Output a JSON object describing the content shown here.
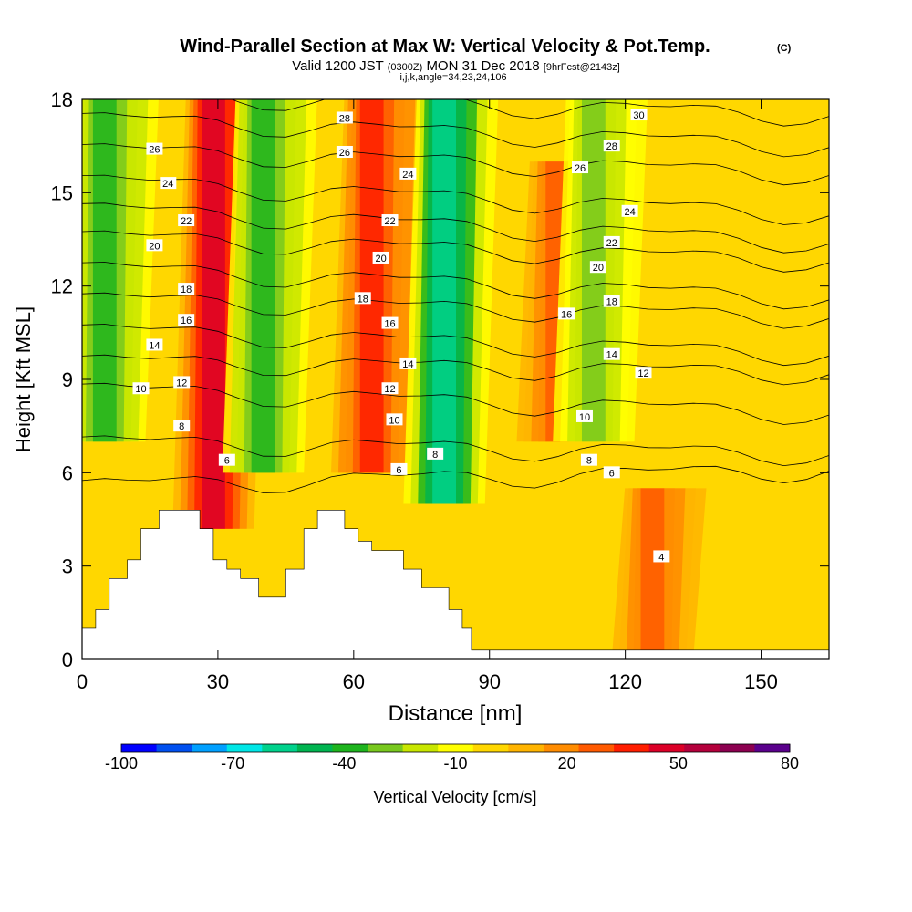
{
  "chart_data": {
    "type": "heatmap",
    "title": "Wind-Parallel Section at Max W: Vertical Velocity & Pot.Temp.",
    "title_suffix": "(C)",
    "subtitle": {
      "valid": "Valid 1200 JST",
      "utc": "(0300Z)",
      "date": "MON 31 Dec 2018",
      "forecast": "[9hrFcst@2143z]"
    },
    "indices": "i,j,k,angle=34,23,24,106",
    "xlabel": "Distance [nm]",
    "ylabel": "Height [Kft MSL]",
    "xlim": [
      0,
      165
    ],
    "ylim": [
      0,
      18
    ],
    "x_ticks": [
      0,
      30,
      60,
      90,
      120,
      150
    ],
    "y_ticks": [
      0,
      3,
      6,
      9,
      12,
      15,
      18
    ],
    "colorbar": {
      "label": "Vertical Velocity [cm/s]",
      "range": [
        -100,
        80
      ],
      "tick_labels": [
        "-100",
        "-70",
        "-40",
        "-10",
        "20",
        "50",
        "80"
      ],
      "colors": [
        "#0000ff",
        "#0050f0",
        "#00a0ff",
        "#00e6e6",
        "#00d28c",
        "#00b450",
        "#1eb41e",
        "#78c81e",
        "#c8e600",
        "#ffff00",
        "#ffd700",
        "#ffb400",
        "#ff8c00",
        "#ff5a00",
        "#ff1e00",
        "#dc0028",
        "#b4003c",
        "#8c0050",
        "#5a008c"
      ]
    },
    "updrafts": [
      {
        "x": 29,
        "z0": 4.2,
        "z1": 18,
        "peak_cm_s": 50
      },
      {
        "x": 64,
        "z0": 6,
        "z1": 18,
        "peak_cm_s": 35
      },
      {
        "x": 105,
        "z0": 7,
        "z1": 16,
        "peak_cm_s": 25
      },
      {
        "x": 126,
        "z0": 0,
        "z1": 5.5,
        "peak_cm_s": 25
      }
    ],
    "downdrafts": [
      {
        "x": 5,
        "z0": 7,
        "z1": 18,
        "peak_cm_s": -40
      },
      {
        "x": 40,
        "z0": 6,
        "z1": 18,
        "peak_cm_s": -40
      },
      {
        "x": 80,
        "z0": 5,
        "z1": 18,
        "peak_cm_s": -60
      },
      {
        "x": 113,
        "z0": 7,
        "z1": 18,
        "peak_cm_s": -30
      }
    ],
    "terrain_profile_kft": [
      [
        0,
        1
      ],
      [
        3,
        1
      ],
      [
        3,
        1.6
      ],
      [
        6,
        1.6
      ],
      [
        6,
        2.6
      ],
      [
        10,
        2.6
      ],
      [
        10,
        3.2
      ],
      [
        13,
        3.2
      ],
      [
        13,
        4.2
      ],
      [
        17,
        4.2
      ],
      [
        17,
        4.8
      ],
      [
        26,
        4.8
      ],
      [
        26,
        4.2
      ],
      [
        29,
        4.2
      ],
      [
        29,
        3.2
      ],
      [
        32,
        3.2
      ],
      [
        32,
        2.9
      ],
      [
        35,
        2.9
      ],
      [
        35,
        2.6
      ],
      [
        39,
        2.6
      ],
      [
        39,
        2
      ],
      [
        45,
        2
      ],
      [
        45,
        2.9
      ],
      [
        49,
        2.9
      ],
      [
        49,
        4.2
      ],
      [
        52,
        4.2
      ],
      [
        52,
        4.8
      ],
      [
        58,
        4.8
      ],
      [
        58,
        4.2
      ],
      [
        61,
        4.2
      ],
      [
        61,
        3.8
      ],
      [
        64,
        3.8
      ],
      [
        64,
        3.5
      ],
      [
        71,
        3.5
      ],
      [
        71,
        2.9
      ],
      [
        75,
        2.9
      ],
      [
        75,
        2.3
      ],
      [
        81,
        2.3
      ],
      [
        81,
        1.6
      ],
      [
        84,
        1.6
      ],
      [
        84,
        1
      ],
      [
        86,
        1
      ],
      [
        86,
        0.3
      ],
      [
        165,
        0.3
      ]
    ],
    "pot_temp_contours": [
      {
        "value": 4,
        "label": "4",
        "points": [
          [
            128,
            3
          ]
        ],
        "label_pos": [
          128,
          3.3
        ]
      },
      {
        "value": 6,
        "label": "6",
        "x0_kft": 5.6,
        "x1_kft": 6.1,
        "labels_at": [
          [
            32,
            6.4
          ],
          [
            70,
            6.1
          ],
          [
            117,
            6.0
          ]
        ]
      },
      {
        "value": 8,
        "label": "8",
        "x0_kft": 7.0,
        "x1_kft": 6.6,
        "labels_at": [
          [
            22,
            7.5
          ],
          [
            78,
            6.6
          ],
          [
            112,
            6.4
          ]
        ]
      },
      {
        "value": 10,
        "label": "10",
        "x0_kft": 8.7,
        "x1_kft": 7.9,
        "labels_at": [
          [
            13,
            8.7
          ],
          [
            69,
            7.7
          ],
          [
            111,
            7.8
          ]
        ]
      },
      {
        "value": 12,
        "label": "12",
        "x0_kft": 9.6,
        "x1_kft": 9.2,
        "labels_at": [
          [
            22,
            8.9
          ],
          [
            68,
            8.7
          ],
          [
            124,
            9.2
          ]
        ]
      },
      {
        "value": 14,
        "label": "14",
        "x0_kft": 10.6,
        "x1_kft": 9.8,
        "labels_at": [
          [
            16,
            10.1
          ],
          [
            72,
            9.5
          ],
          [
            117,
            9.8
          ]
        ]
      },
      {
        "value": 16,
        "label": "16",
        "x0_kft": 11.6,
        "x1_kft": 11.0,
        "labels_at": [
          [
            23,
            10.9
          ],
          [
            68,
            10.8
          ],
          [
            107,
            11.1
          ]
        ]
      },
      {
        "value": 18,
        "label": "18",
        "x0_kft": 12.6,
        "x1_kft": 11.6,
        "labels_at": [
          [
            23,
            11.9
          ],
          [
            62,
            11.6
          ],
          [
            117,
            11.5
          ]
        ]
      },
      {
        "value": 20,
        "label": "20",
        "x0_kft": 13.6,
        "x1_kft": 12.8,
        "labels_at": [
          [
            16,
            13.3
          ],
          [
            66,
            12.9
          ],
          [
            114,
            12.6
          ]
        ]
      },
      {
        "value": 22,
        "label": "22",
        "x0_kft": 14.5,
        "x1_kft": 13.4,
        "labels_at": [
          [
            23,
            14.1
          ],
          [
            68,
            14.1
          ],
          [
            117,
            13.4
          ]
        ]
      },
      {
        "value": 24,
        "label": "24",
        "x0_kft": 15.4,
        "x1_kft": 14.3,
        "labels_at": [
          [
            19,
            15.3
          ],
          [
            72,
            15.6
          ],
          [
            121,
            14.4
          ]
        ]
      },
      {
        "value": 26,
        "label": "26",
        "x0_kft": 16.4,
        "x1_kft": 15.6,
        "labels_at": [
          [
            16,
            16.4
          ],
          [
            58,
            16.3
          ],
          [
            110,
            15.8
          ]
        ]
      },
      {
        "value": 28,
        "label": "28",
        "x0_kft": 17.4,
        "x1_kft": 16.5,
        "labels_at": [
          [
            58,
            17.4
          ],
          [
            117,
            16.5
          ]
        ]
      },
      {
        "value": 30,
        "label": "30",
        "x0_kft": 18.2,
        "x1_kft": 17.5,
        "labels_at": [
          [
            123,
            17.5
          ]
        ]
      }
    ]
  }
}
